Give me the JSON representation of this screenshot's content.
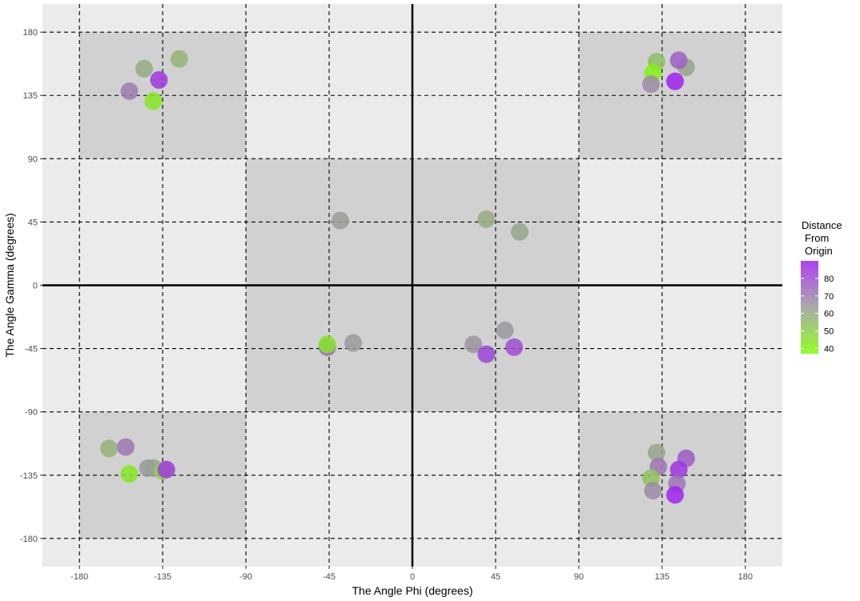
{
  "chart_data": {
    "type": "scatter",
    "xlabel": "The Angle Phi (degrees)",
    "ylabel": "The Angle Gamma (degrees)",
    "xlim": [
      -200,
      200
    ],
    "ylim": [
      -200,
      200
    ],
    "x_ticks": [
      -180,
      -135,
      -90,
      -45,
      0,
      45,
      90,
      135,
      180
    ],
    "y_ticks": [
      -180,
      -135,
      -90,
      -45,
      0,
      45,
      90,
      135,
      180
    ],
    "grid": true,
    "grid_style": "dashed",
    "shaded_regions": [
      {
        "x": [
          -180,
          -90
        ],
        "y": [
          90,
          180
        ]
      },
      {
        "x": [
          90,
          180
        ],
        "y": [
          90,
          180
        ]
      },
      {
        "x": [
          -90,
          90
        ],
        "y": [
          -90,
          90
        ]
      },
      {
        "x": [
          -180,
          -90
        ],
        "y": [
          -180,
          -90
        ]
      },
      {
        "x": [
          90,
          180
        ],
        "y": [
          -180,
          -90
        ]
      }
    ],
    "colors": {
      "panel": "#ebebeb",
      "shade": "#d1d1d1",
      "low": "#7fff00",
      "mid": "#9b9b9b",
      "high": "#a020f0"
    },
    "legend": {
      "title": [
        "Distance",
        "From",
        "Origin"
      ],
      "labels": [
        40,
        50,
        60,
        70,
        80
      ],
      "range": [
        37,
        90
      ],
      "placement": "right"
    },
    "points": [
      {
        "x": -145,
        "y": 154,
        "d": 59
      },
      {
        "x": -126,
        "y": 161,
        "d": 57
      },
      {
        "x": -137,
        "y": 146,
        "d": 85
      },
      {
        "x": -153,
        "y": 138,
        "d": 70
      },
      {
        "x": -140,
        "y": 131,
        "d": 43
      },
      {
        "x": 132,
        "y": 159,
        "d": 54
      },
      {
        "x": 130,
        "y": 151,
        "d": 40
      },
      {
        "x": 148,
        "y": 155,
        "d": 61
      },
      {
        "x": 144,
        "y": 160,
        "d": 76
      },
      {
        "x": 129,
        "y": 143,
        "d": 67
      },
      {
        "x": 142,
        "y": 145,
        "d": 90
      },
      {
        "x": -39,
        "y": 46,
        "d": 63
      },
      {
        "x": 40,
        "y": 47,
        "d": 59
      },
      {
        "x": 58,
        "y": 38,
        "d": 61
      },
      {
        "x": -46,
        "y": -44,
        "d": 73
      },
      {
        "x": -46,
        "y": -42,
        "d": 44
      },
      {
        "x": -32,
        "y": -41,
        "d": 64
      },
      {
        "x": 33,
        "y": -42,
        "d": 65
      },
      {
        "x": 50,
        "y": -32,
        "d": 64
      },
      {
        "x": 55,
        "y": -44,
        "d": 80
      },
      {
        "x": 40,
        "y": -49,
        "d": 82
      },
      {
        "x": -164,
        "y": -116,
        "d": 58
      },
      {
        "x": -155,
        "y": -115,
        "d": 71
      },
      {
        "x": -143,
        "y": -130,
        "d": 64
      },
      {
        "x": -140,
        "y": -130,
        "d": 62
      },
      {
        "x": -153,
        "y": -134,
        "d": 43
      },
      {
        "x": -135,
        "y": -132,
        "d": 50
      },
      {
        "x": -133,
        "y": -131,
        "d": 84
      },
      {
        "x": 132,
        "y": -119,
        "d": 61
      },
      {
        "x": 148,
        "y": -123,
        "d": 77
      },
      {
        "x": 133,
        "y": -129,
        "d": 72
      },
      {
        "x": 144,
        "y": -131,
        "d": 86
      },
      {
        "x": 129,
        "y": -137,
        "d": 53
      },
      {
        "x": 143,
        "y": -141,
        "d": 72
      },
      {
        "x": 130,
        "y": -146,
        "d": 67
      },
      {
        "x": 142,
        "y": -149,
        "d": 89
      }
    ]
  }
}
